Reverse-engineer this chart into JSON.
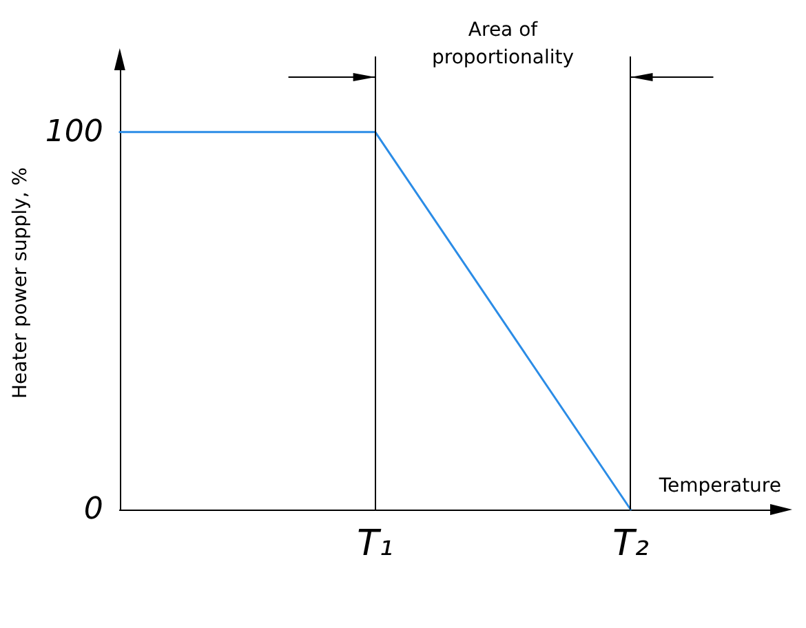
{
  "chart_data": {
    "type": "line",
    "xlabel": "Temperature",
    "ylabel": "Heater power supply, %",
    "categories": [
      null,
      "T₁",
      "T₂"
    ],
    "values": [
      100,
      100,
      0
    ],
    "color": "#2b8ce6",
    "ylim": [
      0,
      120
    ],
    "yticks": [
      0,
      100
    ],
    "ref_lines": [
      {
        "axis": "x",
        "value": "T₁",
        "color": "#000000"
      },
      {
        "axis": "x",
        "value": "T₂",
        "color": "#000000"
      }
    ],
    "annotations": [
      "Area of proportionality"
    ],
    "grid": false,
    "marker": "none",
    "line_style": "solid"
  }
}
